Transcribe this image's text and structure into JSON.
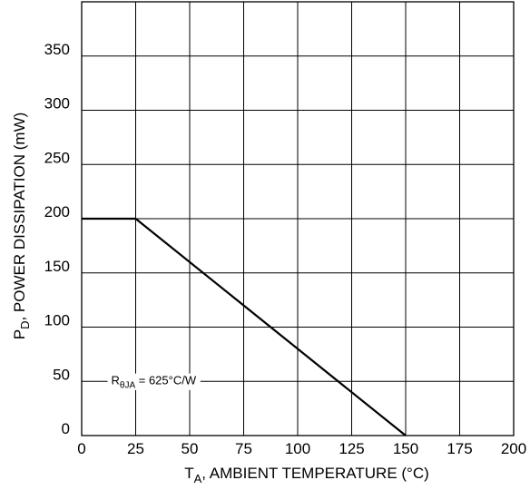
{
  "chart_data": {
    "type": "line",
    "xlabel": {
      "main": "T",
      "sub": "A",
      "rest": ", AMBIENT TEMPERATURE (°C)"
    },
    "ylabel": {
      "main": "P",
      "sub": "D",
      "rest": ", POWER DISSIPATION (mW)"
    },
    "xlim": [
      0,
      200
    ],
    "ylim": [
      0,
      400
    ],
    "x_ticks": [
      0,
      25,
      50,
      75,
      100,
      125,
      150,
      175,
      200
    ],
    "y_ticks": [
      0,
      50,
      100,
      150,
      200,
      250,
      300,
      350
    ],
    "grid": true,
    "series": [
      {
        "x": [
          0,
          25,
          150
        ],
        "y": [
          200,
          200,
          0
        ]
      }
    ],
    "annotation": {
      "r": "R",
      "sub": "θJA",
      "rest": " = 625°C/W",
      "x": 25,
      "y": 50
    },
    "colors": {
      "line": "#000000",
      "grid": "#000000",
      "background": "#ffffff"
    }
  }
}
